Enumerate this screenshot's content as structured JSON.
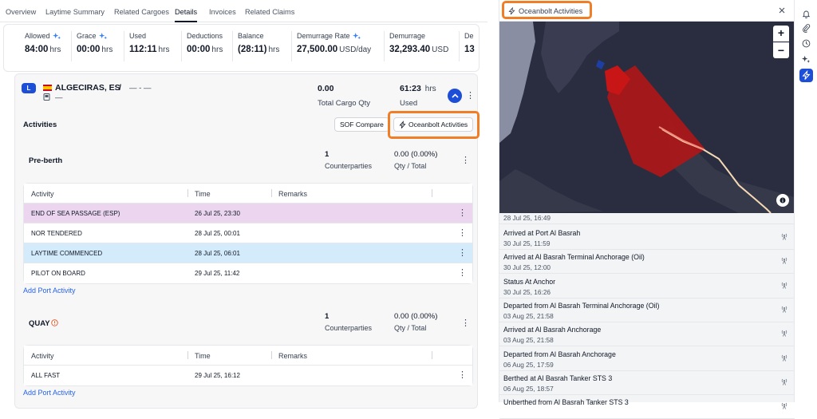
{
  "tabs": [
    "Overview",
    "Laytime Summary",
    "Related Cargoes",
    "Details",
    "Invoices",
    "Related Claims"
  ],
  "active_tab": "Details",
  "summary": {
    "allowed": {
      "label": "Allowed",
      "value": "84:00",
      "unit": "hrs"
    },
    "grace": {
      "label": "Grace",
      "value": "00:00",
      "unit": "hrs"
    },
    "used": {
      "label": "Used",
      "value": "112:11",
      "unit": "hrs"
    },
    "deductions": {
      "label": "Deductions",
      "value": "00:00",
      "unit": "hrs"
    },
    "balance": {
      "label": "Balance",
      "value": "(28:11)",
      "unit": "hrs"
    },
    "demurrage_rate": {
      "label": "Demurrage Rate",
      "value": "27,500.00",
      "unit": "USD/day"
    },
    "demurrage": {
      "label": "Demurrage",
      "value": "32,293.40",
      "unit": "USD"
    },
    "despatch": {
      "label": "De",
      "value": "13"
    }
  },
  "port": {
    "badge": "L",
    "name": "ALGECIRAS, ES",
    "separator": "/",
    "dashes": "— - —",
    "sub_dash": "—",
    "cargo_qty_value": "0.00",
    "cargo_qty_label": "Total Cargo Qty",
    "used_value": "61:23",
    "used_unit": "hrs",
    "used_label": "Used"
  },
  "activities": {
    "title": "Activities",
    "sof_compare": "SOF Compare",
    "oceanbolt_button": "Oceanbolt Activities",
    "add_port_activity": "Add Port Activity",
    "columns": [
      "Activity",
      "Time",
      "Remarks"
    ],
    "pre_berth": {
      "title": "Pre-berth",
      "counterparties_value": "1",
      "counterparties_label": "Counterparties",
      "qty_value": "0.00 (0.00%)",
      "qty_label": "Qty / Total",
      "rows": [
        {
          "activity": "END OF SEA PASSAGE (ESP)",
          "time": "26 Jul 25, 23:30",
          "color": "#ecd5ef"
        },
        {
          "activity": "NOR TENDERED",
          "time": "28 Jul 25, 00:01",
          "color": "#ffffff"
        },
        {
          "activity": "LAYTIME COMMENCED",
          "time": "28 Jul 25, 06:01",
          "color": "#d3ebfb"
        },
        {
          "activity": "PILOT ON BOARD",
          "time": "29 Jul 25, 11:42",
          "color": "#ffffff"
        }
      ]
    },
    "quay": {
      "title": "QUAY",
      "counterparties_value": "1",
      "counterparties_label": "Counterparties",
      "qty_value": "0.00 (0.00%)",
      "qty_label": "Qty / Total",
      "rows": [
        {
          "activity": "ALL FAST",
          "time": "29 Jul 25, 16:12",
          "color": "#ffffff"
        }
      ]
    }
  },
  "panel": {
    "title": "Oceanbolt Activities",
    "zoom_in": "+",
    "zoom_out": "−",
    "events_top_date": "28 Jul 25, 16:49",
    "events": [
      {
        "title": "Arrived at Port Al Basrah",
        "date": "30 Jul 25, 11:59"
      },
      {
        "title": "Arrived at Al Basrah Terminal Anchorage (Oil)",
        "date": "30 Jul 25, 12:00"
      },
      {
        "title": "Status At Anchor",
        "date": "30 Jul 25, 16:26"
      },
      {
        "title": "Departed from Al Basrah Terminal Anchorage (Oil)",
        "date": "03 Aug 25, 21:58"
      },
      {
        "title": "Arrived at Al Basrah Anchorage",
        "date": "03 Aug 25, 21:58"
      },
      {
        "title": "Departed from Al Basrah Anchorage",
        "date": "06 Aug 25, 17:59"
      },
      {
        "title": "Berthed at Al Basrah Tanker STS 3",
        "date": "06 Aug 25, 18:57"
      },
      {
        "title": "Unberthed from Al Basrah Tanker STS 3",
        "date": ""
      }
    ]
  },
  "colors": {
    "accent": "#1d4ed8",
    "highlight": "#f07e26",
    "map_water": "#2a2d40",
    "map_land": "#8a8ea3",
    "zone": "#b01616",
    "track": "#f5d9b5"
  }
}
